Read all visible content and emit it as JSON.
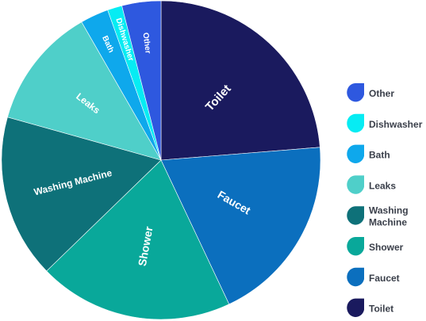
{
  "chart_data": {
    "type": "pie",
    "title": "",
    "legend_placement": "right",
    "start_angle_deg": 0,
    "direction": "clockwise",
    "slices": [
      {
        "label": "Toilet",
        "legend_lines": [
          "Toilet"
        ],
        "value": 24.0,
        "color": "#1a1a5e"
      },
      {
        "label": "Faucet",
        "legend_lines": [
          "Faucet"
        ],
        "value": 19.5,
        "color": "#0b6fbe"
      },
      {
        "label": "Shower",
        "legend_lines": [
          "Shower"
        ],
        "value": 20.0,
        "color": "#09a89a"
      },
      {
        "label": "Washing Machine",
        "legend_lines": [
          "Washing",
          "Machine"
        ],
        "value": 16.8,
        "color": "#0e7179"
      },
      {
        "label": "Leaks",
        "legend_lines": [
          "Leaks"
        ],
        "value": 12.5,
        "color": "#4fcfc9"
      },
      {
        "label": "Bath",
        "legend_lines": [
          "Bath"
        ],
        "value": 2.9,
        "color": "#0ea8ec"
      },
      {
        "label": "Dishwasher",
        "legend_lines": [
          "Dishwasher"
        ],
        "value": 1.5,
        "color": "#06ecf3"
      },
      {
        "label": "Other",
        "legend_lines": [
          "Other"
        ],
        "value": 4.0,
        "color": "#2e58df"
      }
    ],
    "legend_order": [
      "Other",
      "Dishwasher",
      "Bath",
      "Leaks",
      "Washing Machine",
      "Shower",
      "Faucet",
      "Toilet"
    ],
    "legend_icon": "water-drop-icon"
  }
}
